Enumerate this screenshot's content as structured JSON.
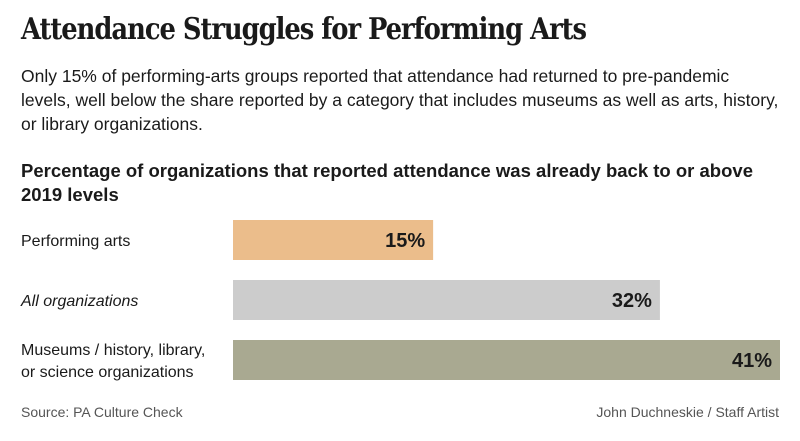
{
  "title": "Attendance Struggles for Performing Arts",
  "subtitle": "Only 15% of performing-arts groups reported that attendance had returned to pre-pandemic levels, well below the share reported by a category that includes museums as well as arts, history, or library organizations.",
  "source": "Source: PA Culture Check",
  "credit": "John Duchneskie / Staff Artist",
  "chart_data": {
    "type": "bar",
    "orientation": "horizontal",
    "title": "Percentage of organizations that reported attendance was already back to or above 2019 levels",
    "categories": [
      {
        "lines": [
          "Performing arts"
        ],
        "italic": false
      },
      {
        "lines": [
          "All organizations"
        ],
        "italic": true
      },
      {
        "lines": [
          "Museums / history, library,",
          "or science organizations"
        ],
        "italic": false
      }
    ],
    "values": [
      15,
      32,
      41
    ],
    "value_labels": [
      "15%",
      "32%",
      "41%"
    ],
    "colors": [
      "#ebbd8b",
      "#cccccc",
      "#a9a991"
    ],
    "xlim": [
      0,
      41
    ],
    "grid": false,
    "legend": "none"
  }
}
